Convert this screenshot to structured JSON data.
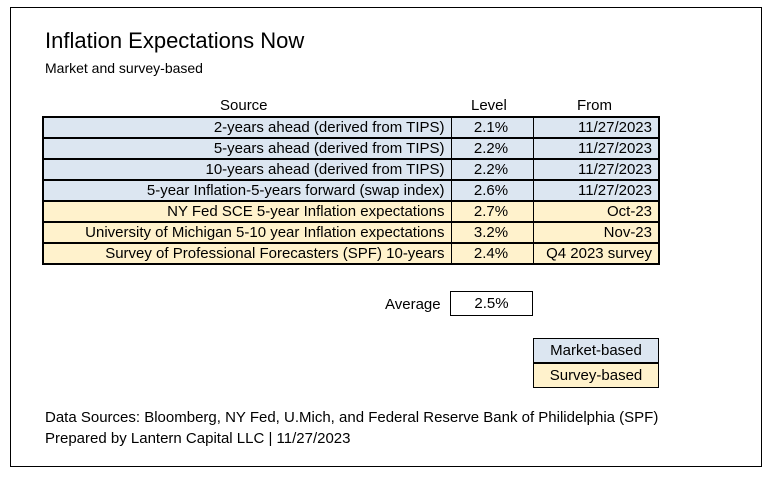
{
  "title": "Inflation Expectations Now",
  "subtitle": "Market and survey-based",
  "columns": {
    "source": "Source",
    "level": "Level",
    "from": "From"
  },
  "rows": [
    {
      "source": "2-years ahead (derived from TIPS)",
      "level": "2.1%",
      "from": "11/27/2023"
    },
    {
      "source": "5-years ahead (derived from TIPS)",
      "level": "2.2%",
      "from": "11/27/2023"
    },
    {
      "source": "10-years ahead (derived from TIPS)",
      "level": "2.2%",
      "from": "11/27/2023"
    },
    {
      "source": "5-year Inflation-5-years forward (swap index)",
      "level": "2.6%",
      "from": "11/27/2023"
    },
    {
      "source": "NY Fed SCE 5-year Inflation expectations",
      "level": "2.7%",
      "from": "Oct-23"
    },
    {
      "source": "University of Michigan 5-10 year Inflation expectations",
      "level": "3.2%",
      "from": "Nov-23"
    },
    {
      "source": "Survey of Professional Forecasters (SPF) 10-years",
      "level": "2.4%",
      "from": "Q4 2023 survey"
    }
  ],
  "average": {
    "label": "Average",
    "value": "2.5%"
  },
  "legend": {
    "market": "Market-based",
    "survey": "Survey-based"
  },
  "colors": {
    "market": "#dce6f1",
    "survey": "#fff2cc"
  },
  "footer": {
    "sources": "Data Sources: Bloomberg, NY Fed, U.Mich, and Federal Reserve Bank of Philidelphia (SPF)",
    "prepared": "Prepared by Lantern Capital LLC | 11/27/2023"
  }
}
